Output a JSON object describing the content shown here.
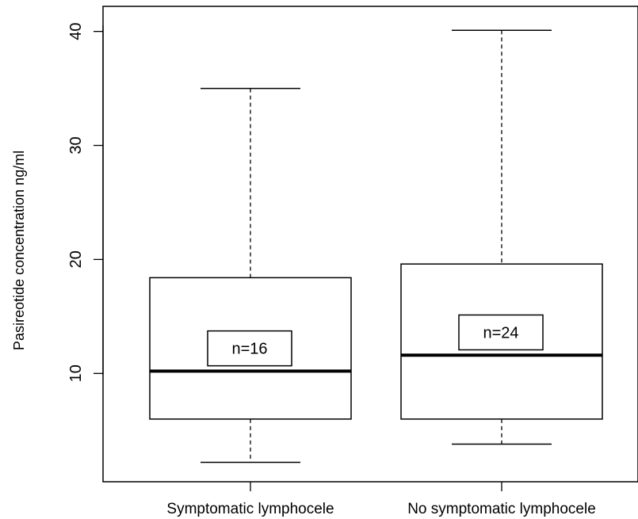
{
  "chart_data": {
    "type": "boxplot",
    "ylabel": "Pasireotide concentration ng/ml",
    "yticks": [
      10,
      20,
      30,
      40
    ],
    "ylim": [
      0.5,
      42.2
    ],
    "categories": [
      "Symptomatic lymphocele",
      "No symptomatic lymphocele"
    ],
    "boxes": [
      {
        "category": "Symptomatic lymphocele",
        "min": 2.2,
        "q1": 6.0,
        "median": 10.2,
        "q3": 18.4,
        "max": 35.0,
        "n_label": "n=16",
        "n_label_value": 12.2
      },
      {
        "category": "No symptomatic lymphocele",
        "min": 3.8,
        "q1": 6.0,
        "median": 11.6,
        "q3": 19.6,
        "max": 40.1,
        "n_label": "n=24",
        "n_label_value": 13.6
      }
    ]
  }
}
